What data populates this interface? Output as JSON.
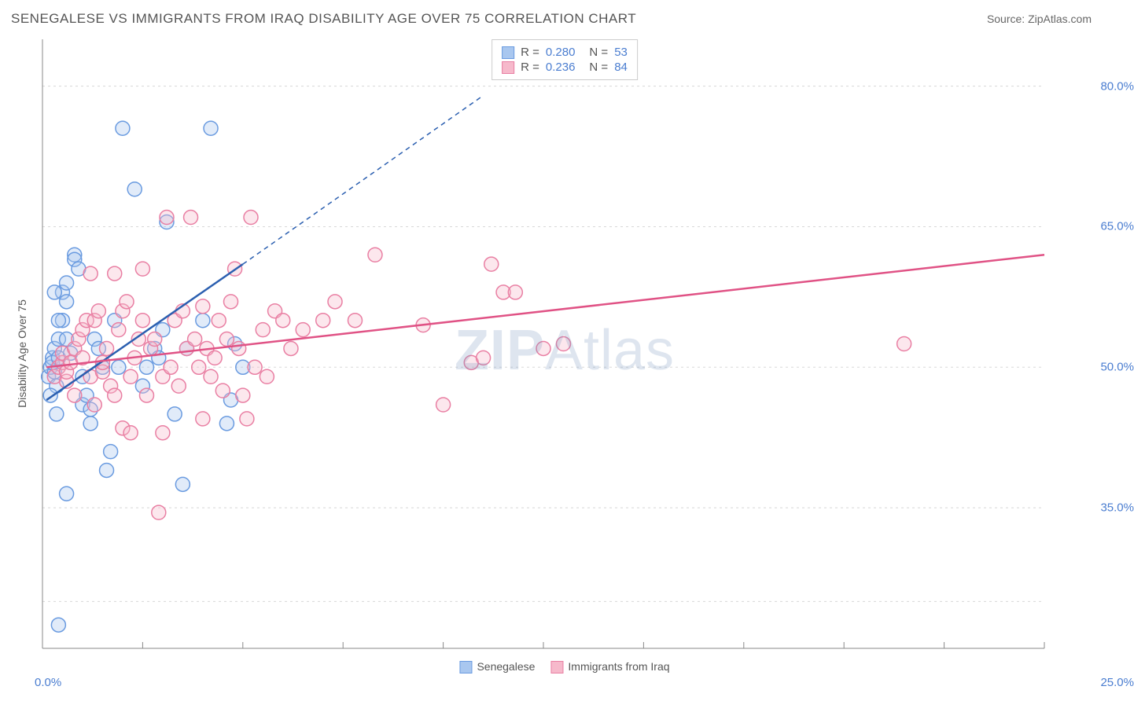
{
  "title": "SENEGALESE VS IMMIGRANTS FROM IRAQ DISABILITY AGE OVER 75 CORRELATION CHART",
  "source": "Source: ZipAtlas.com",
  "y_axis_label": "Disability Age Over 75",
  "watermark": "ZIPAtlas",
  "chart": {
    "type": "scatter",
    "background_color": "#ffffff",
    "grid_color": "#d8d8d8",
    "axis_color": "#888888",
    "tick_label_color": "#4a7dd0",
    "xlim": [
      0,
      25
    ],
    "ylim": [
      20,
      85
    ],
    "x_ticks": [
      0.0,
      25.0
    ],
    "y_ticks": [
      35.0,
      50.0,
      65.0,
      80.0
    ],
    "x_tick_minor_step": 2.5,
    "y_grid_values": [
      25,
      35,
      50,
      65,
      80
    ],
    "marker_radius": 9,
    "marker_fill_opacity": 0.35,
    "marker_stroke_width": 1.5,
    "title_fontsize": 17,
    "label_fontsize": 14
  },
  "series": [
    {
      "name": "Senegalese",
      "color_stroke": "#6a9be0",
      "color_fill": "#a9c7ef",
      "r_value": "0.280",
      "n_value": "53",
      "trend_solid": {
        "x1": 0.1,
        "y1": 46.5,
        "x2": 5.0,
        "y2": 61.0
      },
      "trend_dashed": {
        "x1": 5.0,
        "y1": 61.0,
        "x2": 11.0,
        "y2": 79.0
      },
      "points": [
        [
          0.15,
          49
        ],
        [
          0.2,
          50
        ],
        [
          0.25,
          51
        ],
        [
          0.3,
          49.5
        ],
        [
          0.25,
          50.5
        ],
        [
          0.3,
          52
        ],
        [
          0.35,
          48
        ],
        [
          0.4,
          51
        ],
        [
          0.4,
          53
        ],
        [
          0.5,
          55
        ],
        [
          0.5,
          58
        ],
        [
          0.6,
          57
        ],
        [
          0.6,
          59
        ],
        [
          0.8,
          62
        ],
        [
          0.8,
          61.5
        ],
        [
          0.9,
          60.5
        ],
        [
          1.0,
          49
        ],
        [
          1.0,
          46
        ],
        [
          1.1,
          47
        ],
        [
          1.2,
          44
        ],
        [
          1.2,
          45.5
        ],
        [
          1.3,
          53
        ],
        [
          1.4,
          52
        ],
        [
          1.5,
          50
        ],
        [
          1.6,
          39
        ],
        [
          1.7,
          41
        ],
        [
          1.8,
          55
        ],
        [
          1.9,
          50
        ],
        [
          2.0,
          75.5
        ],
        [
          2.3,
          69
        ],
        [
          2.5,
          48
        ],
        [
          2.6,
          50
        ],
        [
          2.8,
          52
        ],
        [
          2.9,
          51
        ],
        [
          3.0,
          54
        ],
        [
          3.1,
          65.5
        ],
        [
          3.3,
          45
        ],
        [
          3.5,
          37.5
        ],
        [
          3.6,
          52
        ],
        [
          4.0,
          55
        ],
        [
          4.2,
          75.5
        ],
        [
          4.6,
          44
        ],
        [
          4.7,
          46.5
        ],
        [
          4.8,
          52.5
        ],
        [
          5.0,
          50
        ],
        [
          0.3,
          58
        ],
        [
          0.4,
          55
        ],
        [
          0.6,
          53
        ],
        [
          0.7,
          51.5
        ],
        [
          0.2,
          47
        ],
        [
          0.35,
          45
        ],
        [
          0.4,
          22.5
        ],
        [
          0.6,
          36.5
        ]
      ]
    },
    {
      "name": "Immigrants from Iraq",
      "color_stroke": "#e97fa3",
      "color_fill": "#f6b9cb",
      "r_value": "0.236",
      "n_value": "84",
      "trend_solid": {
        "x1": 0.1,
        "y1": 50.0,
        "x2": 25.0,
        "y2": 62.0
      },
      "points": [
        [
          0.3,
          49
        ],
        [
          0.4,
          50
        ],
        [
          0.5,
          50.5
        ],
        [
          0.5,
          51.5
        ],
        [
          0.6,
          48.5
        ],
        [
          0.6,
          49.5
        ],
        [
          0.7,
          50.5
        ],
        [
          0.8,
          47
        ],
        [
          0.8,
          52
        ],
        [
          0.9,
          53
        ],
        [
          1.0,
          54
        ],
        [
          1.0,
          51
        ],
        [
          1.1,
          55
        ],
        [
          1.2,
          49
        ],
        [
          1.2,
          60
        ],
        [
          1.3,
          55
        ],
        [
          1.4,
          56
        ],
        [
          1.5,
          49.5
        ],
        [
          1.5,
          50.5
        ],
        [
          1.6,
          52
        ],
        [
          1.7,
          48
        ],
        [
          1.8,
          47
        ],
        [
          1.8,
          60
        ],
        [
          1.9,
          54
        ],
        [
          2.0,
          56
        ],
        [
          2.1,
          57
        ],
        [
          2.2,
          49
        ],
        [
          2.3,
          51
        ],
        [
          2.4,
          53
        ],
        [
          2.5,
          55
        ],
        [
          2.5,
          60.5
        ],
        [
          2.6,
          47
        ],
        [
          2.7,
          52
        ],
        [
          2.8,
          53
        ],
        [
          2.9,
          34.5
        ],
        [
          3.0,
          49
        ],
        [
          3.1,
          66
        ],
        [
          3.2,
          50
        ],
        [
          3.3,
          55
        ],
        [
          3.4,
          48
        ],
        [
          3.5,
          56
        ],
        [
          3.6,
          52
        ],
        [
          3.7,
          66
        ],
        [
          3.8,
          53
        ],
        [
          3.9,
          50
        ],
        [
          4.0,
          44.5
        ],
        [
          4.0,
          56.5
        ],
        [
          4.1,
          52
        ],
        [
          4.2,
          49
        ],
        [
          4.3,
          51
        ],
        [
          4.4,
          55
        ],
        [
          4.5,
          47.5
        ],
        [
          4.6,
          53
        ],
        [
          4.7,
          57
        ],
        [
          4.8,
          60.5
        ],
        [
          4.9,
          52
        ],
        [
          5.0,
          47
        ],
        [
          5.1,
          44.5
        ],
        [
          5.2,
          66
        ],
        [
          5.3,
          50
        ],
        [
          5.5,
          54
        ],
        [
          5.6,
          49
        ],
        [
          5.8,
          56
        ],
        [
          6.0,
          55
        ],
        [
          6.2,
          52
        ],
        [
          6.5,
          54
        ],
        [
          7.0,
          55
        ],
        [
          7.3,
          57
        ],
        [
          7.8,
          55
        ],
        [
          8.3,
          62
        ],
        [
          9.5,
          54.5
        ],
        [
          10.0,
          46
        ],
        [
          10.7,
          50.5
        ],
        [
          11.0,
          51
        ],
        [
          11.2,
          61
        ],
        [
          11.5,
          58
        ],
        [
          11.8,
          58
        ],
        [
          12.5,
          52
        ],
        [
          13.0,
          52.5
        ],
        [
          21.5,
          52.5
        ],
        [
          2.0,
          43.5
        ],
        [
          2.2,
          43
        ],
        [
          3.0,
          43
        ],
        [
          1.3,
          46
        ]
      ]
    }
  ],
  "legend_bottom": [
    {
      "label": "Senegalese",
      "fill": "#a9c7ef",
      "stroke": "#6a9be0"
    },
    {
      "label": "Immigrants from Iraq",
      "fill": "#f6b9cb",
      "stroke": "#e97fa3"
    }
  ]
}
